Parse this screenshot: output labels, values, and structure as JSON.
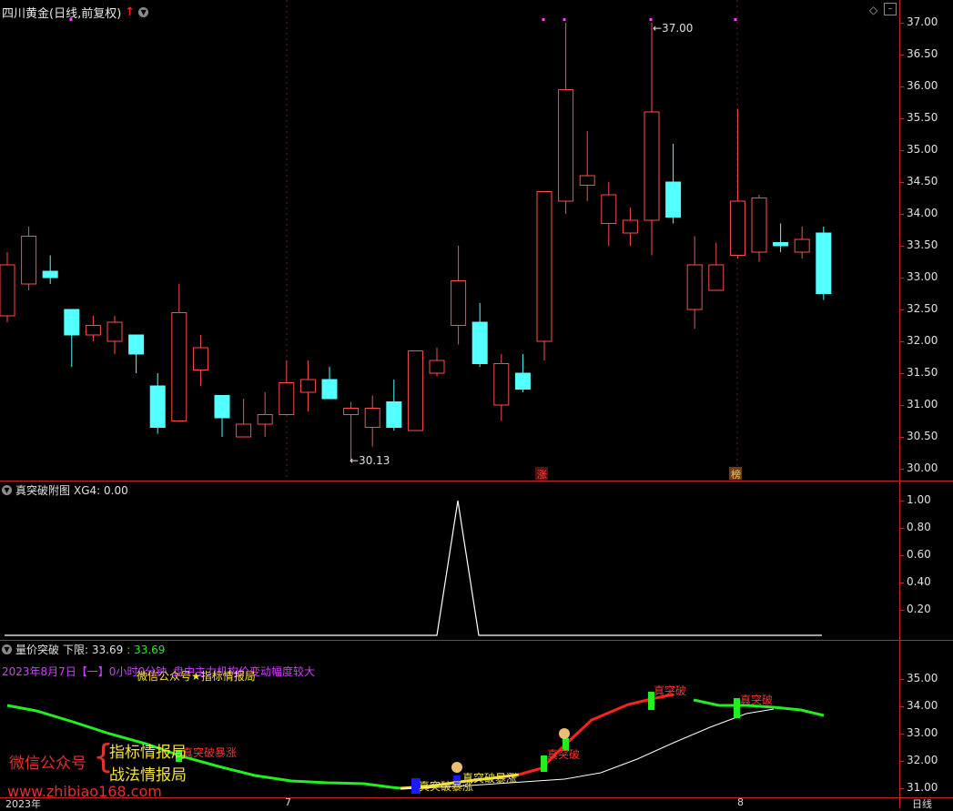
{
  "main_panel": {
    "title": "四川黄金(日线,前复权)",
    "y_ticks": [
      "37.00",
      "36.50",
      "36.00",
      "35.50",
      "35.00",
      "34.50",
      "34.00",
      "33.50",
      "33.00",
      "32.50",
      "32.00",
      "31.50",
      "31.00",
      "30.50",
      "30.00"
    ],
    "high_label": "37.00",
    "low_label": "30.13",
    "tag_zhang": "涨",
    "tag_bang": "榜"
  },
  "sub_panel": {
    "title": "真突破附图",
    "value_label": "XG4: 0.00",
    "y_ticks": [
      "1.00",
      "0.80",
      "0.60",
      "0.40",
      "0.20"
    ]
  },
  "bottom_panel": {
    "title": "量价突破",
    "lower_label": "下限: 33.69",
    "lower_value": ": 33.69",
    "date_line": "2023年8月7日【一】0小时0分钟",
    "overlay_note": "微信公众号★指标情报局",
    "overlay_note2": "盘中主力机构价变动幅度较大",
    "y_ticks": [
      "35.00",
      "34.00",
      "33.00",
      "32.00",
      "31.00"
    ],
    "signals": [
      "真突破暴涨",
      "真突破暴涨",
      "真突破暴涨",
      "真突破",
      "真突破",
      "真突破"
    ]
  },
  "watermark": {
    "left_label": "微信公众号",
    "brand1": "指标情报局",
    "brand2": "战法情报局",
    "url": "www.zhibiao168.com"
  },
  "x_axis": {
    "year": "2023年",
    "m7": "7",
    "m8": "8",
    "period": "日线"
  },
  "colors": {
    "up": "#ff4d4d",
    "down": "#54ffff",
    "grid": "#c0262c",
    "magenta": "#ff44ff",
    "green": "#22ee22"
  },
  "chart_data": {
    "type": "candlestick",
    "ylim": [
      29.9,
      37.15
    ],
    "candles": [
      {
        "o": 32.4,
        "h": 33.4,
        "l": 32.3,
        "c": 33.2
      },
      {
        "o": 32.9,
        "h": 33.8,
        "l": 32.8,
        "c": 33.65
      },
      {
        "o": 33.1,
        "h": 33.35,
        "l": 32.9,
        "c": 33.0
      },
      {
        "o": 32.5,
        "h": 32.5,
        "l": 31.6,
        "c": 32.1
      },
      {
        "o": 32.1,
        "h": 32.4,
        "l": 32.0,
        "c": 32.25
      },
      {
        "o": 32.0,
        "h": 32.4,
        "l": 31.8,
        "c": 32.3
      },
      {
        "o": 32.1,
        "h": 32.1,
        "l": 31.5,
        "c": 31.8
      },
      {
        "o": 31.3,
        "h": 31.5,
        "l": 30.55,
        "c": 30.65
      },
      {
        "o": 30.75,
        "h": 32.9,
        "l": 30.75,
        "c": 32.45
      },
      {
        "o": 31.55,
        "h": 32.1,
        "l": 31.3,
        "c": 31.9
      },
      {
        "o": 31.15,
        "h": 31.15,
        "l": 30.5,
        "c": 30.8
      },
      {
        "o": 30.5,
        "h": 31.1,
        "l": 30.5,
        "c": 30.7
      },
      {
        "o": 30.7,
        "h": 31.2,
        "l": 30.5,
        "c": 30.85
      },
      {
        "o": 30.85,
        "h": 31.7,
        "l": 30.85,
        "c": 31.35
      },
      {
        "o": 31.2,
        "h": 31.7,
        "l": 30.9,
        "c": 31.4
      },
      {
        "o": 31.4,
        "h": 31.6,
        "l": 31.1,
        "c": 31.1
      },
      {
        "o": 30.85,
        "h": 31.05,
        "l": 30.13,
        "c": 30.95
      },
      {
        "o": 30.65,
        "h": 31.15,
        "l": 30.35,
        "c": 30.95
      },
      {
        "o": 31.05,
        "h": 31.4,
        "l": 30.6,
        "c": 30.65
      },
      {
        "o": 30.6,
        "h": 31.85,
        "l": 30.6,
        "c": 31.85
      },
      {
        "o": 31.5,
        "h": 31.9,
        "l": 31.45,
        "c": 31.7
      },
      {
        "o": 32.25,
        "h": 33.5,
        "l": 31.95,
        "c": 32.95
      },
      {
        "o": 32.3,
        "h": 32.6,
        "l": 31.6,
        "c": 31.65
      },
      {
        "o": 31.0,
        "h": 31.8,
        "l": 30.75,
        "c": 31.65
      },
      {
        "o": 31.5,
        "h": 31.8,
        "l": 31.2,
        "c": 31.25
      },
      {
        "o": 32.0,
        "h": 34.35,
        "l": 31.7,
        "c": 34.35
      },
      {
        "o": 34.2,
        "h": 37.0,
        "l": 34.0,
        "c": 35.95
      },
      {
        "o": 34.45,
        "h": 35.3,
        "l": 34.2,
        "c": 34.6
      },
      {
        "o": 33.85,
        "h": 34.5,
        "l": 33.5,
        "c": 34.3
      },
      {
        "o": 33.7,
        "h": 34.1,
        "l": 33.5,
        "c": 33.9
      },
      {
        "o": 33.9,
        "h": 37.0,
        "l": 33.35,
        "c": 35.6
      },
      {
        "o": 34.5,
        "h": 35.1,
        "l": 33.85,
        "c": 33.95
      },
      {
        "o": 32.5,
        "h": 33.65,
        "l": 32.2,
        "c": 33.2
      },
      {
        "o": 32.8,
        "h": 33.55,
        "l": 32.8,
        "c": 33.2
      },
      {
        "o": 33.35,
        "h": 35.65,
        "l": 33.3,
        "c": 34.2
      },
      {
        "o": 33.4,
        "h": 34.3,
        "l": 33.25,
        "c": 34.25
      },
      {
        "o": 33.55,
        "h": 33.85,
        "l": 33.4,
        "c": 33.5
      },
      {
        "o": 33.4,
        "h": 33.8,
        "l": 33.3,
        "c": 33.6
      },
      {
        "o": 33.7,
        "h": 33.8,
        "l": 32.65,
        "c": 32.75
      }
    ]
  }
}
